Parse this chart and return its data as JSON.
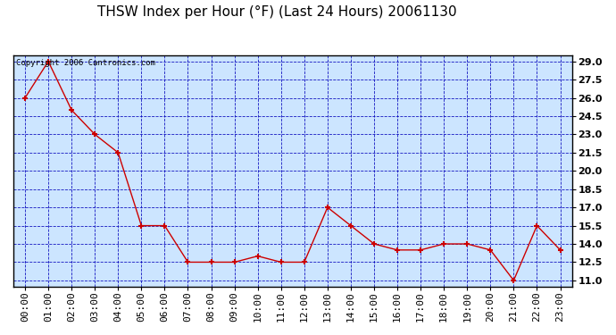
{
  "title": "THSW Index per Hour (°F) (Last 24 Hours) 20061130",
  "copyright": "Copyright 2006 Cantronics.com",
  "x_labels": [
    "00:00",
    "01:00",
    "02:00",
    "03:00",
    "04:00",
    "05:00",
    "06:00",
    "07:00",
    "08:00",
    "09:00",
    "10:00",
    "11:00",
    "12:00",
    "13:00",
    "14:00",
    "15:00",
    "16:00",
    "17:00",
    "18:00",
    "19:00",
    "20:00",
    "21:00",
    "22:00",
    "23:00"
  ],
  "y_values": [
    26.0,
    29.0,
    25.0,
    23.0,
    21.5,
    15.5,
    15.5,
    12.5,
    12.5,
    12.5,
    13.0,
    12.5,
    12.5,
    17.0,
    15.5,
    14.0,
    13.5,
    13.5,
    14.0,
    14.0,
    13.5,
    11.0,
    15.5,
    13.5
  ],
  "ylim_min": 10.5,
  "ylim_max": 29.5,
  "yticks": [
    11.0,
    12.5,
    14.0,
    15.5,
    17.0,
    18.5,
    20.0,
    21.5,
    23.0,
    24.5,
    26.0,
    27.5,
    29.0
  ],
  "line_color": "#cc0000",
  "marker_color": "#cc0000",
  "outer_bg_color": "#ffffff",
  "plot_bg_color": "#cce5ff",
  "grid_color": "#0000bb",
  "title_color": "#000000",
  "tick_label_color": "#000000",
  "copyright_fontsize": 6.5,
  "title_fontsize": 11,
  "tick_fontsize": 8
}
